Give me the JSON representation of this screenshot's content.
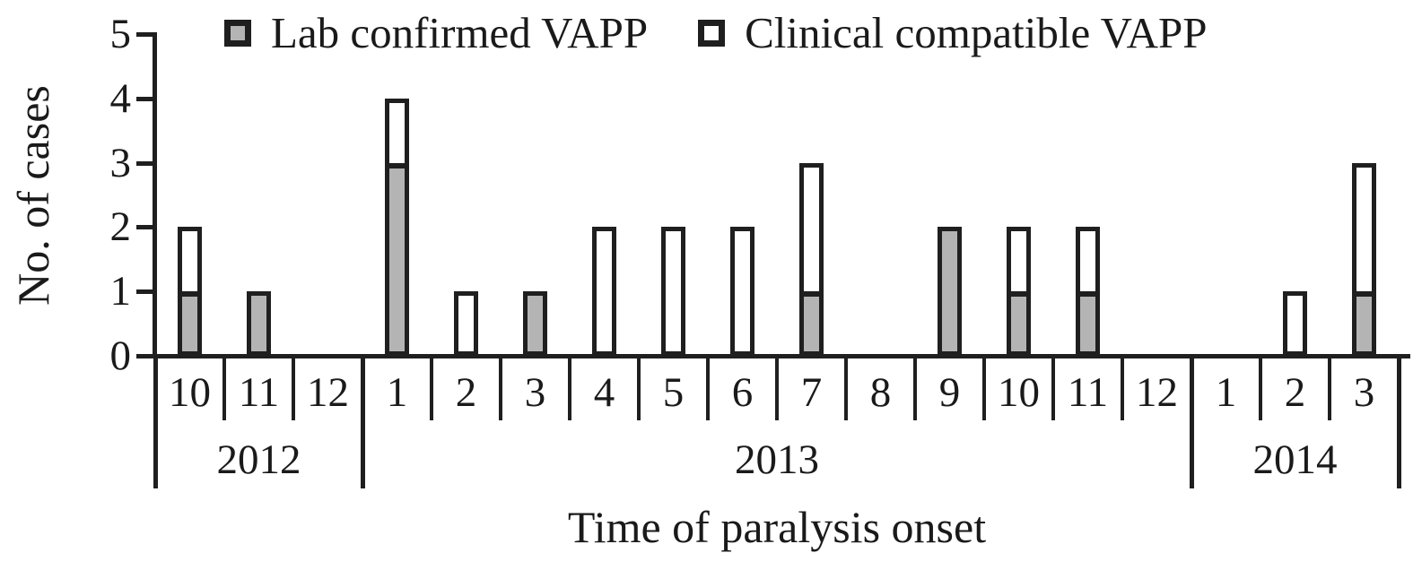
{
  "colors": {
    "line": "#1f1f1f",
    "text": "#1a1a1a",
    "bar_fill_lab": "#b4b4b4",
    "bar_fill_clinical": "#ffffff",
    "background": "#ffffff"
  },
  "legend": [
    {
      "label": "Lab confirmed VAPP",
      "swatch": "lab"
    },
    {
      "label": "Clinical compatible VAPP",
      "swatch": "clinical"
    }
  ],
  "chart_data": {
    "type": "bar",
    "stacked": true,
    "title": "",
    "xlabel": "Time of paralysis onset",
    "ylabel": "No. of cases",
    "ylim": [
      0,
      5
    ],
    "yticks": [
      0,
      1,
      2,
      3,
      4,
      5
    ],
    "grid": false,
    "legend_position": "top",
    "categories": [
      "10",
      "11",
      "12",
      "1",
      "2",
      "3",
      "4",
      "5",
      "6",
      "7",
      "8",
      "9",
      "10",
      "11",
      "12",
      "1",
      "2",
      "3"
    ],
    "year_groups": [
      {
        "label": "2012",
        "start": 0,
        "count": 3
      },
      {
        "label": "2013",
        "start": 3,
        "count": 12
      },
      {
        "label": "2014",
        "start": 15,
        "count": 3
      }
    ],
    "series": [
      {
        "name": "Lab confirmed VAPP",
        "values": [
          1,
          1,
          0,
          3,
          0,
          1,
          0,
          0,
          0,
          1,
          0,
          2,
          1,
          1,
          0,
          0,
          0,
          1
        ]
      },
      {
        "name": "Clinical compatible VAPP",
        "values": [
          1,
          0,
          0,
          1,
          1,
          0,
          2,
          2,
          2,
          2,
          0,
          0,
          1,
          1,
          0,
          0,
          1,
          2
        ]
      }
    ],
    "totals": [
      2,
      1,
      0,
      4,
      1,
      1,
      2,
      2,
      2,
      3,
      0,
      2,
      2,
      2,
      0,
      0,
      1,
      3
    ]
  }
}
